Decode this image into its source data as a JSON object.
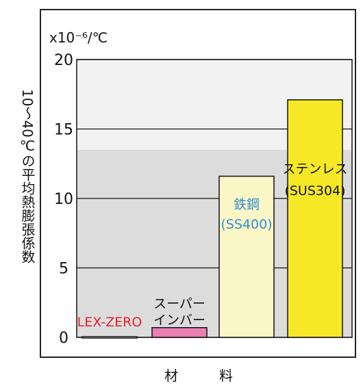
{
  "chart_data": {
    "type": "bar",
    "unit_label": "x10⁻⁶/℃",
    "ylabel": "10〜40℃の平均熱膨張係数",
    "xlabel": "材　　　料",
    "ylim": [
      0,
      20
    ],
    "yticks": [
      0,
      5,
      10,
      15,
      20
    ],
    "grid": true,
    "categories": [
      {
        "lines": [
          "LEX-ZERO"
        ],
        "label_color": "#e8202a"
      },
      {
        "lines": [
          "スーパー",
          "インバー"
        ],
        "label_color": "#111111"
      },
      {
        "lines": [
          "鉄鋼",
          "(SS400)"
        ],
        "label_color": "#2f8fd0"
      },
      {
        "lines": [
          "ステンレス",
          "(SUS304)"
        ],
        "label_color": "#111111"
      }
    ],
    "values": [
      0.05,
      0.7,
      11.6,
      17.1
    ],
    "colors": [
      "#ffffff",
      "#ea7fb2",
      "#faf6c6",
      "#f6e826"
    ]
  }
}
